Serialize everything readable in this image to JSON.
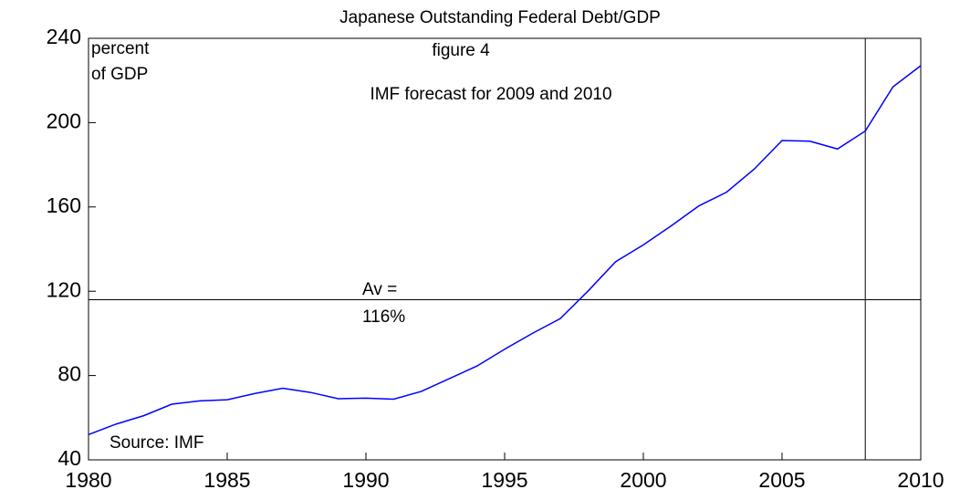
{
  "chart_data": {
    "type": "line",
    "title": "Japanese Outstanding Federal Debt/GDP",
    "annotations": [
      "percent",
      "of GDP",
      "figure 4",
      "IMF forecast for 2009 and 2010",
      "Av =",
      "116%",
      "Source: IMF"
    ],
    "x": [
      1980,
      1981,
      1982,
      1983,
      1984,
      1985,
      1986,
      1987,
      1988,
      1989,
      1990,
      1991,
      1992,
      1993,
      1994,
      1995,
      1996,
      1997,
      1998,
      1999,
      2000,
      2001,
      2002,
      2003,
      2004,
      2005,
      2006,
      2007,
      2008,
      2009,
      2010
    ],
    "series": [
      {
        "name": "Debt/GDP",
        "color": "#0000ff",
        "values": [
          52,
          57,
          61,
          66.4,
          68,
          68.5,
          71.5,
          74,
          72,
          69,
          69.3,
          68.8,
          72.5,
          78.5,
          84.5,
          92.5,
          100,
          107,
          120,
          134,
          142,
          151,
          160.5,
          167,
          178,
          191.5,
          191.2,
          187.5,
          196,
          217,
          227
        ]
      }
    ],
    "reference_line": 116,
    "vline_x": 2008,
    "xlim": [
      1980,
      2010
    ],
    "xticks": [
      1980,
      1985,
      1990,
      1995,
      2000,
      2005,
      2010
    ],
    "ylim": [
      40,
      240
    ],
    "yticks": [
      40,
      80,
      120,
      160,
      200,
      240
    ]
  }
}
